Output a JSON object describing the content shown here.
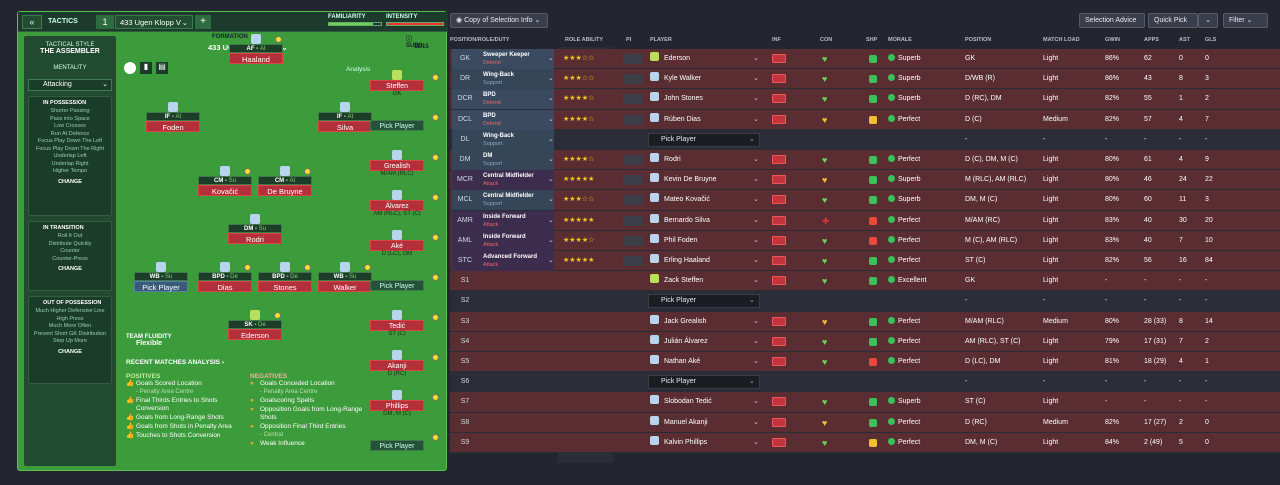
{
  "topbar": {
    "back": "«",
    "tactics": "TACTICS",
    "num": "1",
    "name": "433 Ugen Klopp V",
    "plus": "+",
    "familiarity": "FAMILIARITY",
    "intensity": "INTENSITY"
  },
  "sidebar": {
    "style_h": "TACTICAL STYLE",
    "style": "THE ASSEMBLER",
    "mentality_h": "MENTALITY",
    "mentality": "Attacking",
    "poss_h": "IN POSSESSION",
    "poss": [
      "Shorter Passing",
      "Pass into Space",
      "Low Crosses",
      "Run At Defence",
      "Focus Play Down The Left",
      "Focus Play Down The Right",
      "Underlap Left",
      "Underlap Right",
      "Higher Tempo"
    ],
    "trans_h": "IN TRANSITION",
    "trans": [
      "Roll It Out",
      "Distribute Quickly",
      "Counter",
      "Counter-Press"
    ],
    "oop_h": "OUT OF POSSESSION",
    "oop": [
      "Much Higher Defensive Line",
      "High Press",
      "Much More Often",
      "Prevent Short GK Distribution",
      "Step Up More"
    ],
    "change": "CHANGE"
  },
  "pitch": {
    "formation_h": "FORMATION",
    "formation": "433 UGEN KLOPP V",
    "analysis": "Analysis",
    "subs_h": "SUBS:",
    "subs_count": "11/15"
  },
  "players": [
    {
      "role": "AF",
      "duty": "At",
      "name": "Haaland"
    },
    {
      "role": "IF",
      "duty": "At",
      "name": "Foden"
    },
    {
      "role": "IF",
      "duty": "At",
      "name": "Silva"
    },
    {
      "role": "CM",
      "duty": "Su",
      "name": "Kovačić"
    },
    {
      "role": "CM",
      "duty": "At",
      "name": "De Bruyne"
    },
    {
      "role": "DM",
      "duty": "Su",
      "name": "Rodri"
    },
    {
      "role": "WB",
      "duty": "Su",
      "name": "Pick Player"
    },
    {
      "role": "BPD",
      "duty": "De",
      "name": "Dias"
    },
    {
      "role": "BPD",
      "duty": "De",
      "name": "Stones"
    },
    {
      "role": "WB",
      "duty": "Su",
      "name": "Walker"
    },
    {
      "role": "SK",
      "duty": "De",
      "name": "Ederson"
    }
  ],
  "subs": [
    {
      "name": "Steffen",
      "pos": "GK"
    },
    {
      "name": "Pick Player",
      "pos": ""
    },
    {
      "name": "Grealish",
      "pos": "M/AM (RLC)"
    },
    {
      "name": "Álvarez",
      "pos": "AM (RLC), ST (C)"
    },
    {
      "name": "Aké",
      "pos": "D (LC), DM"
    },
    {
      "name": "Pick Player",
      "pos": ""
    },
    {
      "name": "Tedić",
      "pos": "ST (C)"
    },
    {
      "name": "Akanji",
      "pos": "D (RC)"
    },
    {
      "name": "Phillips",
      "pos": "DM, M (C)"
    },
    {
      "name": "Pick Player",
      "pos": ""
    }
  ],
  "fluidity": {
    "h": "TEAM FLUIDITY",
    "v": "Flexible"
  },
  "recent": "RECENT MATCHES ANALYSIS  ›",
  "positives_h": "POSITIVES",
  "negatives_h": "NEGATIVES",
  "positives": [
    {
      "t": "Goals Scored Location",
      "s": "- Penalty Area Centre"
    },
    {
      "t": "Final Thirds Entries to Shots Conversion",
      "s": ""
    },
    {
      "t": "Goals from Long-Range Shots",
      "s": ""
    },
    {
      "t": "Goals from Shots in Penalty Area",
      "s": ""
    },
    {
      "t": "Touches to Shots Conversion",
      "s": ""
    }
  ],
  "negatives": [
    {
      "t": "Goals Conceded Location",
      "s": "- Penalty Area Centre"
    },
    {
      "t": "Goalscoring Spells",
      "s": ""
    },
    {
      "t": "Opposition Goals from Long-Range Shots",
      "s": ""
    },
    {
      "t": "Opposition Final Third Entries",
      "s": "- Central"
    },
    {
      "t": "Weak Influence",
      "s": ""
    }
  ],
  "toolbar": {
    "copy": "Copy of Selection Info",
    "advice": "Selection Advice",
    "quick": "Quick Pick",
    "filter": "Filter"
  },
  "headers": [
    "POSITION/ROLE/DUTY",
    "ROLE ABILITY",
    "PI",
    "PLAYER",
    "INF",
    "CON",
    "SHP",
    "MORALE",
    "POSITION",
    "MATCH LOAD",
    "GWIN",
    "APPS",
    "AST",
    "GLS"
  ],
  "rows": [
    {
      "pos": "GK",
      "role": "Sweeper Keeper",
      "duty": "Defend",
      "stars": "★★★☆☆",
      "player": "Ederson",
      "morale": "Superb",
      "position": "GK",
      "load": "Light",
      "gwin": "86%",
      "apps": "62",
      "ast": "0",
      "gls": "0"
    },
    {
      "pos": "DR",
      "role": "Wing-Back",
      "duty": "Support",
      "stars": "★★★☆☆",
      "player": "Kyle Walker",
      "morale": "Superb",
      "position": "D/WB (R)",
      "load": "Light",
      "gwin": "86%",
      "apps": "43",
      "ast": "8",
      "gls": "3"
    },
    {
      "pos": "DCR",
      "role": "BPD",
      "duty": "Defend",
      "stars": "★★★★☆",
      "player": "John Stones",
      "morale": "Superb",
      "position": "D (RC), DM",
      "load": "Light",
      "gwin": "82%",
      "apps": "55",
      "ast": "1",
      "gls": "2"
    },
    {
      "pos": "DCL",
      "role": "BPD",
      "duty": "Defend",
      "stars": "★★★★☆",
      "player": "Rúben Dias",
      "morale": "Perfect",
      "position": "D (C)",
      "load": "Medium",
      "gwin": "82%",
      "apps": "57",
      "ast": "4",
      "gls": "7"
    },
    {
      "pos": "DL",
      "role": "Wing-Back",
      "duty": "Support",
      "stars": "",
      "player": "Pick Player",
      "morale": "",
      "position": "-",
      "load": "-",
      "gwin": "-",
      "apps": "-",
      "ast": "-",
      "gls": "-"
    },
    {
      "pos": "DM",
      "role": "DM",
      "duty": "Support",
      "stars": "★★★★☆",
      "player": "Rodri",
      "morale": "Perfect",
      "position": "D (C), DM, M (C)",
      "load": "Light",
      "gwin": "80%",
      "apps": "61",
      "ast": "4",
      "gls": "9"
    },
    {
      "pos": "MCR",
      "role": "Central Midfielder",
      "duty": "Attack",
      "stars": "★★★★★",
      "player": "Kevin De Bruyne",
      "morale": "Superb",
      "position": "M (RLC), AM (RLC)",
      "load": "Light",
      "gwin": "80%",
      "apps": "46",
      "ast": "24",
      "gls": "22"
    },
    {
      "pos": "MCL",
      "role": "Central Midfielder",
      "duty": "Support",
      "stars": "★★★☆☆",
      "player": "Mateo Kovačić",
      "morale": "Superb",
      "position": "DM, M (C)",
      "load": "Light",
      "gwin": "80%",
      "apps": "60",
      "ast": "11",
      "gls": "3"
    },
    {
      "pos": "AMR",
      "role": "Inside Forward",
      "duty": "Attack",
      "stars": "★★★★★",
      "player": "Bernardo Silva",
      "morale": "Perfect",
      "position": "M/AM (RC)",
      "load": "Light",
      "gwin": "83%",
      "apps": "40",
      "ast": "30",
      "gls": "20"
    },
    {
      "pos": "AML",
      "role": "Inside Forward",
      "duty": "Attack",
      "stars": "★★★★☆",
      "player": "Phil Foden",
      "morale": "Perfect",
      "position": "M (C), AM (RLC)",
      "load": "Light",
      "gwin": "83%",
      "apps": "40",
      "ast": "7",
      "gls": "10"
    },
    {
      "pos": "STC",
      "role": "Advanced Forward",
      "duty": "Attack",
      "stars": "★★★★★",
      "player": "Erling Haaland",
      "morale": "Perfect",
      "position": "ST (C)",
      "load": "Light",
      "gwin": "82%",
      "apps": "56",
      "ast": "16",
      "gls": "84"
    },
    {
      "pos": "S1",
      "role": "",
      "duty": "",
      "stars": "",
      "player": "Zack Steffen",
      "morale": "Excellent",
      "position": "GK",
      "load": "Light",
      "gwin": "-",
      "apps": "-",
      "ast": "-",
      "gls": "-"
    },
    {
      "pos": "S2",
      "role": "",
      "duty": "",
      "stars": "",
      "player": "Pick Player",
      "morale": "",
      "position": "-",
      "load": "-",
      "gwin": "-",
      "apps": "-",
      "ast": "-",
      "gls": "-"
    },
    {
      "pos": "S3",
      "role": "",
      "duty": "",
      "stars": "",
      "player": "Jack Grealish",
      "morale": "Perfect",
      "position": "M/AM (RLC)",
      "load": "Medium",
      "gwin": "80%",
      "apps": "28 (33)",
      "ast": "8",
      "gls": "14"
    },
    {
      "pos": "S4",
      "role": "",
      "duty": "",
      "stars": "",
      "player": "Julián Álvarez",
      "morale": "Perfect",
      "position": "AM (RLC), ST (C)",
      "load": "Light",
      "gwin": "79%",
      "apps": "17 (31)",
      "ast": "7",
      "gls": "2"
    },
    {
      "pos": "S5",
      "role": "",
      "duty": "",
      "stars": "",
      "player": "Nathan Aké",
      "morale": "Perfect",
      "position": "D (LC), DM",
      "load": "Light",
      "gwin": "81%",
      "apps": "18 (29)",
      "ast": "4",
      "gls": "1"
    },
    {
      "pos": "S6",
      "role": "",
      "duty": "",
      "stars": "",
      "player": "Pick Player",
      "morale": "",
      "position": "-",
      "load": "-",
      "gwin": "-",
      "apps": "-",
      "ast": "-",
      "gls": "-"
    },
    {
      "pos": "S7",
      "role": "",
      "duty": "",
      "stars": "",
      "player": "Slobodan Tedić",
      "morale": "Superb",
      "position": "ST (C)",
      "load": "Light",
      "gwin": "-",
      "apps": "-",
      "ast": "-",
      "gls": "-"
    },
    {
      "pos": "S8",
      "role": "",
      "duty": "",
      "stars": "",
      "player": "Manuel Akanji",
      "morale": "Perfect",
      "position": "D (RC)",
      "load": "Medium",
      "gwin": "82%",
      "apps": "17 (27)",
      "ast": "2",
      "gls": "0"
    },
    {
      "pos": "S9",
      "role": "",
      "duty": "",
      "stars": "",
      "player": "Kalvin Phillips",
      "morale": "Perfect",
      "position": "DM, M (C)",
      "load": "Light",
      "gwin": "84%",
      "apps": "2 (49)",
      "ast": "5",
      "gls": "0"
    }
  ]
}
